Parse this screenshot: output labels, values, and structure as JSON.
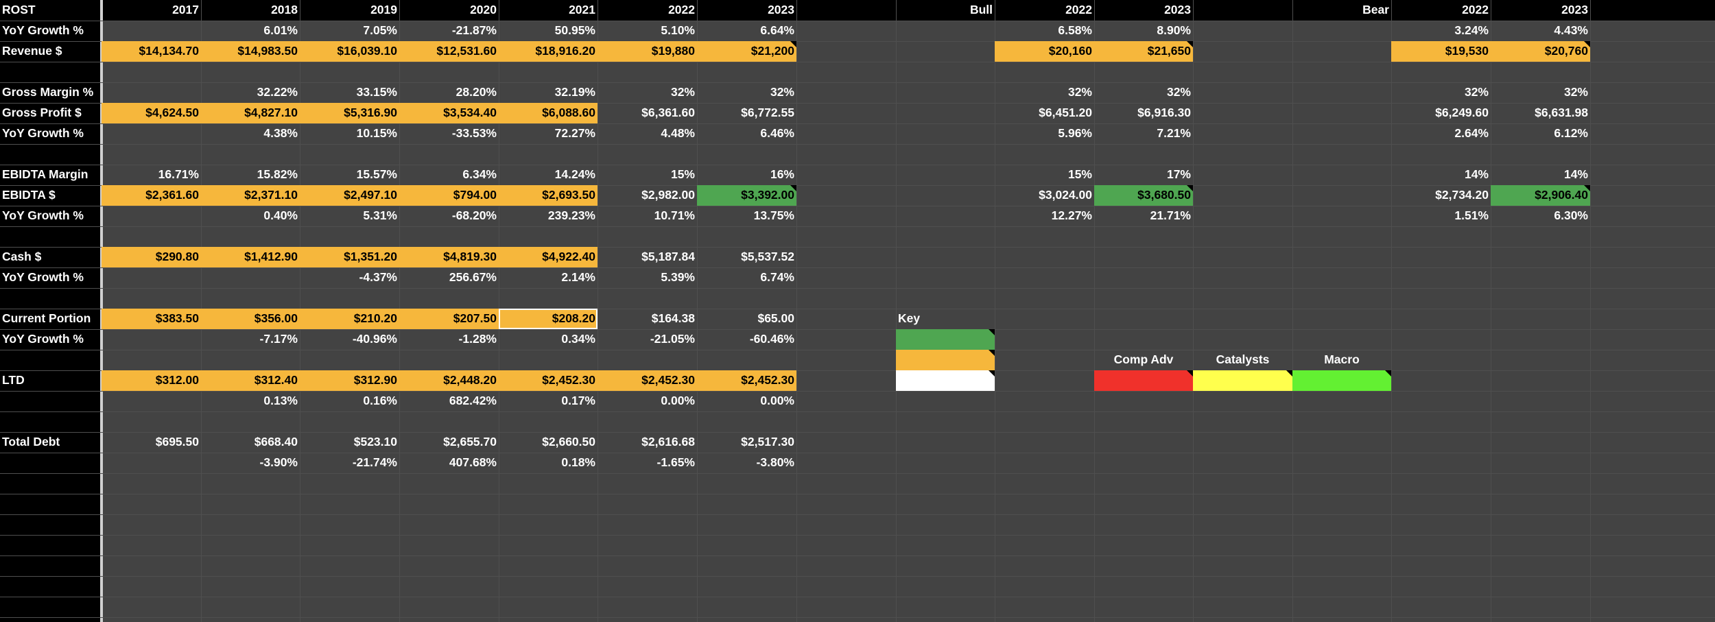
{
  "sheet": {
    "ticker": "ROST",
    "years": [
      "2017",
      "2018",
      "2019",
      "2020",
      "2021",
      "2022",
      "2023"
    ],
    "bull": {
      "label": "Bull",
      "years": [
        "2022",
        "2023"
      ]
    },
    "bear": {
      "label": "Bear",
      "years": [
        "2022",
        "2023"
      ]
    },
    "colors": {
      "orange": "#f6b73c",
      "green": "#4fa651",
      "white": "#ffffff",
      "red": "#f0312b",
      "yellow": "#ffff4d",
      "lime": "#63f032",
      "bg": "#434343",
      "header": "#000000"
    }
  },
  "rows": {
    "revenue_growth": {
      "label": "YoY Growth %",
      "values": [
        "",
        "6.01%",
        "7.05%",
        "-21.87%",
        "50.95%",
        "5.10%",
        "6.64%"
      ],
      "bull": [
        "6.58%",
        "8.90%"
      ],
      "bear": [
        "3.24%",
        "4.43%"
      ]
    },
    "revenue": {
      "label": "Revenue $",
      "values": [
        "$14,134.70",
        "$14,983.50",
        "$16,039.10",
        "$12,531.60",
        "$18,916.20",
        "$19,880",
        "$21,200"
      ],
      "bull": [
        "$20,160",
        "$21,650"
      ],
      "bear": [
        "$19,530",
        "$20,760"
      ]
    },
    "gross_margin": {
      "label": "Gross Margin %",
      "values": [
        "",
        "32.22%",
        "33.15%",
        "28.20%",
        "32.19%",
        "32%",
        "32%"
      ],
      "bull": [
        "32%",
        "32%"
      ],
      "bear": [
        "32%",
        "32%"
      ]
    },
    "gross_profit": {
      "label": "Gross Profit $",
      "values": [
        "$4,624.50",
        "$4,827.10",
        "$5,316.90",
        "$3,534.40",
        "$6,088.60",
        "$6,361.60",
        "$6,772.55"
      ],
      "bull": [
        "$6,451.20",
        "$6,916.30"
      ],
      "bear": [
        "$6,249.60",
        "$6,631.98"
      ]
    },
    "gp_growth": {
      "label": "YoY Growth %",
      "values": [
        "",
        "4.38%",
        "10.15%",
        "-33.53%",
        "72.27%",
        "4.48%",
        "6.46%"
      ],
      "bull": [
        "5.96%",
        "7.21%"
      ],
      "bear": [
        "2.64%",
        "6.12%"
      ]
    },
    "ebitda_margin": {
      "label": "EBIDTA Margin",
      "values": [
        "16.71%",
        "15.82%",
        "15.57%",
        "6.34%",
        "14.24%",
        "15%",
        "16%"
      ],
      "bull": [
        "15%",
        "17%"
      ],
      "bear": [
        "14%",
        "14%"
      ]
    },
    "ebitda": {
      "label": "EBIDTA $",
      "values": [
        "$2,361.60",
        "$2,371.10",
        "$2,497.10",
        "$794.00",
        "$2,693.50",
        "$2,982.00",
        "$3,392.00"
      ],
      "bull": [
        "$3,024.00",
        "$3,680.50"
      ],
      "bear": [
        "$2,734.20",
        "$2,906.40"
      ]
    },
    "ebitda_growth": {
      "label": "YoY Growth %",
      "values": [
        "",
        "0.40%",
        "5.31%",
        "-68.20%",
        "239.23%",
        "10.71%",
        "13.75%"
      ],
      "bull": [
        "12.27%",
        "21.71%"
      ],
      "bear": [
        "1.51%",
        "6.30%"
      ]
    },
    "cash": {
      "label": "Cash $",
      "values": [
        "$290.80",
        "$1,412.90",
        "$1,351.20",
        "$4,819.30",
        "$4,922.40",
        "$5,187.84",
        "$5,537.52"
      ]
    },
    "cash_growth": {
      "label": "YoY Growth %",
      "values": [
        "",
        "",
        "-4.37%",
        "256.67%",
        "2.14%",
        "5.39%",
        "6.74%"
      ]
    },
    "current_portion": {
      "label": "Current Portion",
      "values": [
        "$383.50",
        "$356.00",
        "$210.20",
        "$207.50",
        "$208.20",
        "$164.38",
        "$65.00"
      ]
    },
    "cp_growth": {
      "label": "YoY Growth %",
      "values": [
        "",
        "-7.17%",
        "-40.96%",
        "-1.28%",
        "0.34%",
        "-21.05%",
        "-60.46%"
      ]
    },
    "ltd": {
      "label": "LTD",
      "values": [
        "$312.00",
        "$312.40",
        "$312.90",
        "$2,448.20",
        "$2,452.30",
        "$2,452.30",
        "$2,452.30"
      ]
    },
    "ltd_growth": {
      "label": "",
      "values": [
        "",
        "0.13%",
        "0.16%",
        "682.42%",
        "0.17%",
        "0.00%",
        "0.00%"
      ]
    },
    "total_debt": {
      "label": "Total Debt",
      "values": [
        "$695.50",
        "$668.40",
        "$523.10",
        "$2,655.70",
        "$2,660.50",
        "$2,616.68",
        "$2,517.30"
      ]
    },
    "td_growth": {
      "label": "",
      "values": [
        "",
        "-3.90%",
        "-21.74%",
        "407.68%",
        "0.18%",
        "-1.65%",
        "-3.80%"
      ]
    }
  },
  "key": {
    "title": "Key"
  },
  "factors": {
    "comp_adv": "Comp Adv",
    "catalysts": "Catalysts",
    "macro": "Macro"
  }
}
